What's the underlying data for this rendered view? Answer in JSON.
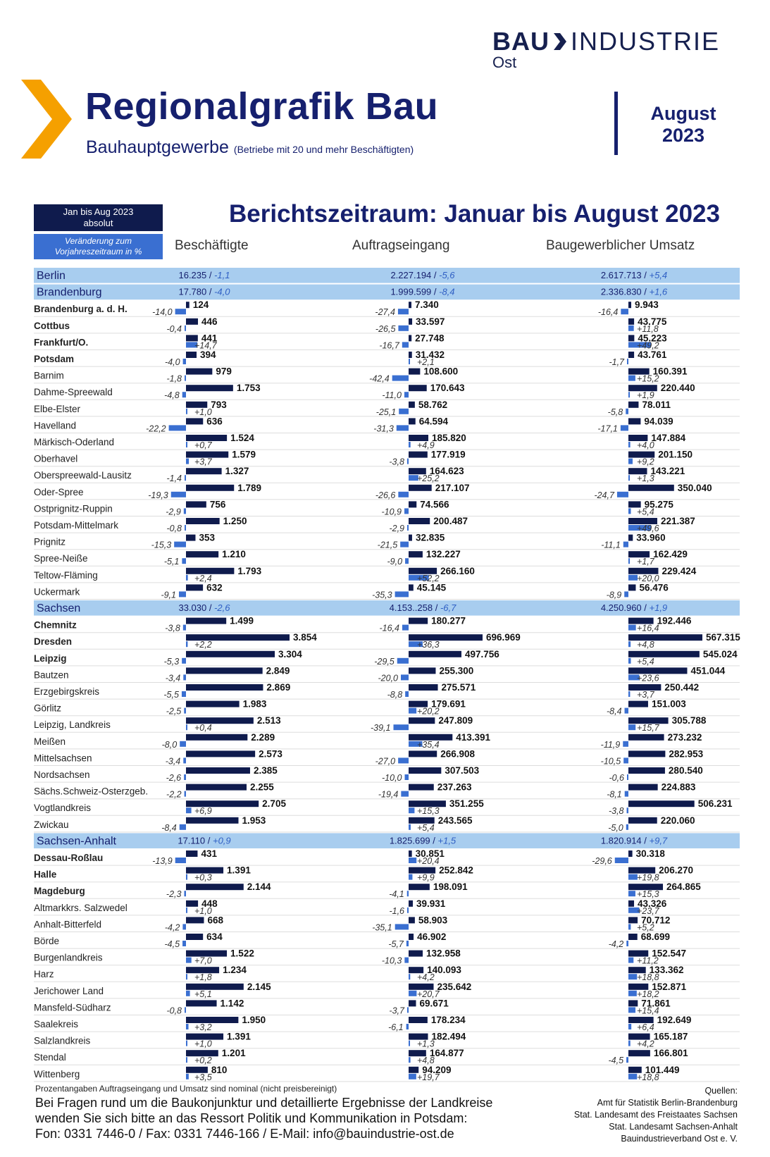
{
  "header": {
    "logo_bold": "BAU",
    "logo_rest": "INDUSTRIE",
    "logo_sub": "Ost",
    "title": "Regionalgrafik Bau",
    "subtitle": "Bauhauptgewerbe",
    "subtitle_note": "(Betriebe mit 20 und mehr Beschäftigten)",
    "month": "August",
    "year": "2023"
  },
  "legend": {
    "absolute_line1": "Jan bis Aug 2023",
    "absolute_line2": "absolut",
    "change_line1": "Veränderung zum",
    "change_line2": "Vorjahreszeitraum in %"
  },
  "period_title": "Berichtszeitraum: Januar bis August 2023",
  "columns": [
    "Beschäftigte",
    "Auftragseingang",
    "Baugewerblicher Umsatz"
  ],
  "colors": {
    "abs_bar": "#0f1b4d",
    "pct_bar": "#3a6fd1",
    "state_band": "#a8cdef",
    "navy": "#16206e"
  },
  "chart_data": {
    "type": "bar",
    "note": "rows in order; s = state row; b = bold (city); cells = [absolute_label, abs_value, pct_label, pct_value] per column",
    "rows": [
      {
        "n": "Berlin",
        "s": 1,
        "c": [
          [
            "16.235",
            "-1,1"
          ],
          [
            "2.227.194",
            "-5,6"
          ],
          [
            "2.617.713",
            "+5,4"
          ]
        ]
      },
      {
        "n": "Brandenburg",
        "s": 1,
        "c": [
          [
            "17.780",
            "-4,0"
          ],
          [
            "1.999.599",
            "-8,4"
          ],
          [
            "2.336.830",
            "+1,6"
          ]
        ]
      },
      {
        "n": "Brandenburg a. d. H.",
        "b": 1,
        "c": [
          [
            "124",
            124,
            "-14,0",
            -14.0
          ],
          [
            "7.340",
            7340,
            "-27,4",
            -27.4
          ],
          [
            "9.943",
            9943,
            "-16,4",
            -16.4
          ]
        ]
      },
      {
        "n": "Cottbus",
        "b": 1,
        "c": [
          [
            "446",
            446,
            "-0,4",
            -0.4
          ],
          [
            "33.597",
            33597,
            "-26,5",
            -26.5
          ],
          [
            "43.775",
            43775,
            "+11,8",
            11.8
          ]
        ]
      },
      {
        "n": "Frankfurt/O.",
        "b": 1,
        "c": [
          [
            "441",
            441,
            "+14,7",
            14.7
          ],
          [
            "27.748",
            27748,
            "-16,7",
            -16.7
          ],
          [
            "45.223",
            45223,
            "+49,2",
            49.2
          ]
        ]
      },
      {
        "n": "Potsdam",
        "b": 1,
        "c": [
          [
            "394",
            394,
            "-4,0",
            -4.0
          ],
          [
            "31.432",
            31432,
            "+2,1",
            2.1
          ],
          [
            "43.761",
            43761,
            "-1,7",
            -1.7
          ]
        ]
      },
      {
        "n": "Barnim",
        "c": [
          [
            "979",
            979,
            "-1,8",
            -1.8
          ],
          [
            "108.600",
            108600,
            "-42,4",
            -42.4
          ],
          [
            "160.391",
            160391,
            "+15,2",
            15.2
          ]
        ]
      },
      {
        "n": "Dahme-Spreewald",
        "c": [
          [
            "1.753",
            1753,
            "-4,8",
            -4.8
          ],
          [
            "170.643",
            170643,
            "-11,0",
            -11.0
          ],
          [
            "220.440",
            220440,
            "+1,9",
            1.9
          ]
        ]
      },
      {
        "n": "Elbe-Elster",
        "c": [
          [
            "793",
            793,
            "+1,0",
            1.0
          ],
          [
            "58.762",
            58762,
            "-25,1",
            -25.1
          ],
          [
            "78.011",
            78011,
            "-5,8",
            -5.8
          ]
        ]
      },
      {
        "n": "Havelland",
        "c": [
          [
            "636",
            636,
            "-22,2",
            -22.2
          ],
          [
            "64.594",
            64594,
            "-31,3",
            -31.3
          ],
          [
            "94.039",
            94039,
            "-17,1",
            -17.1
          ]
        ]
      },
      {
        "n": "Märkisch-Oderland",
        "c": [
          [
            "1.524",
            1524,
            "+0,7",
            0.7
          ],
          [
            "185.820",
            185820,
            "+4,9",
            4.9
          ],
          [
            "147.884",
            147884,
            "+4,0",
            4.0
          ]
        ]
      },
      {
        "n": "Oberhavel",
        "c": [
          [
            "1.579",
            1579,
            "+3,7",
            3.7
          ],
          [
            "177.919",
            177919,
            "-3,8",
            -3.8
          ],
          [
            "201.150",
            201150,
            "+9,2",
            9.2
          ]
        ]
      },
      {
        "n": "Oberspreewald-Lausitz",
        "c": [
          [
            "1.327",
            1327,
            "-1,4",
            -1.4
          ],
          [
            "164.623",
            164623,
            "+25,2",
            25.2
          ],
          [
            "143.221",
            143221,
            "+1,3",
            1.3
          ]
        ]
      },
      {
        "n": "Oder-Spree",
        "c": [
          [
            "1.789",
            1789,
            "-19,3",
            -19.3
          ],
          [
            "217.107",
            217107,
            "-26,6",
            -26.6
          ],
          [
            "350.040",
            350040,
            "-24,7",
            -24.7
          ]
        ]
      },
      {
        "n": "Ostprignitz-Ruppin",
        "c": [
          [
            "756",
            756,
            "-2,9",
            -2.9
          ],
          [
            "74.566",
            74566,
            "-10,9",
            -10.9
          ],
          [
            "95.275",
            95275,
            "+5,4",
            5.4
          ]
        ]
      },
      {
        "n": "Potsdam-Mittelmark",
        "c": [
          [
            "1.250",
            1250,
            "-0,8",
            -0.8
          ],
          [
            "200.487",
            200487,
            "-2,9",
            -2.9
          ],
          [
            "221.387",
            221387,
            "+49,6",
            49.6
          ]
        ]
      },
      {
        "n": "Prignitz",
        "c": [
          [
            "353",
            353,
            "-15,3",
            -15.3
          ],
          [
            "32.835",
            32835,
            "-21,5",
            -21.5
          ],
          [
            "33.960",
            33960,
            "-11,1",
            -11.1
          ]
        ]
      },
      {
        "n": "Spree-Neiße",
        "c": [
          [
            "1.210",
            1210,
            "-5,1",
            -5.1
          ],
          [
            "132.227",
            132227,
            "-9,0",
            -9.0
          ],
          [
            "162.429",
            162429,
            "+1,7",
            1.7
          ]
        ]
      },
      {
        "n": "Teltow-Fläming",
        "c": [
          [
            "1.793",
            1793,
            "+2,4",
            2.4
          ],
          [
            "266.160",
            266160,
            "+52,2",
            52.2
          ],
          [
            "229.424",
            229424,
            "+20,0",
            20.0
          ]
        ]
      },
      {
        "n": "Uckermark",
        "c": [
          [
            "632",
            632,
            "-9,1",
            -9.1
          ],
          [
            "45.145",
            45145,
            "-35,3",
            -35.3
          ],
          [
            "56.476",
            56476,
            "-8,9",
            -8.9
          ]
        ]
      },
      {
        "n": "Sachsen",
        "s": 1,
        "c": [
          [
            "33.030",
            "-2,6"
          ],
          [
            "4.153..258",
            "-6,7"
          ],
          [
            "4.250.960",
            "+1,9"
          ]
        ]
      },
      {
        "n": "Chemnitz",
        "b": 1,
        "c": [
          [
            "1.499",
            1499,
            "-3,8",
            -3.8
          ],
          [
            "180.277",
            180277,
            "-16,4",
            -16.4
          ],
          [
            "192.446",
            192446,
            "+16,4",
            16.4
          ]
        ]
      },
      {
        "n": "Dresden",
        "b": 1,
        "c": [
          [
            "3.854",
            3854,
            "+2,2",
            2.2
          ],
          [
            "696.969",
            696969,
            "+36,3",
            36.3
          ],
          [
            "567.315",
            567315,
            "+4,8",
            4.8
          ]
        ]
      },
      {
        "n": "Leipzig",
        "b": 1,
        "c": [
          [
            "3.304",
            3304,
            "-5,3",
            -5.3
          ],
          [
            "497.756",
            497756,
            "-29,5",
            -29.5
          ],
          [
            "545.024",
            545024,
            "+5,4",
            5.4
          ]
        ]
      },
      {
        "n": "Bautzen",
        "c": [
          [
            "2.849",
            2849,
            "-3,4",
            -3.4
          ],
          [
            "255.300",
            255300,
            "-20,0",
            -20.0
          ],
          [
            "451.044",
            451044,
            "+23,6",
            23.6
          ]
        ]
      },
      {
        "n": "Erzgebirgskreis",
        "c": [
          [
            "2.869",
            2869,
            "-5,5",
            -5.5
          ],
          [
            "275.571",
            275571,
            "-8,8",
            -8.8
          ],
          [
            "250.442",
            250442,
            "+3,7",
            3.7
          ]
        ]
      },
      {
        "n": "Görlitz",
        "c": [
          [
            "1.983",
            1983,
            "-2,5",
            -2.5
          ],
          [
            "179.691",
            179691,
            "+20,2",
            20.2
          ],
          [
            "151.003",
            151003,
            "-8,4",
            -8.4
          ]
        ]
      },
      {
        "n": "Leipzig, Landkreis",
        "c": [
          [
            "2.513",
            2513,
            "+0,4",
            0.4
          ],
          [
            "247.809",
            247809,
            "-39,1",
            -39.1
          ],
          [
            "305.788",
            305788,
            "+15,7",
            15.7
          ]
        ]
      },
      {
        "n": "Meißen",
        "c": [
          [
            "2.289",
            2289,
            "-8,0",
            -8.0
          ],
          [
            "413.391",
            413391,
            "+35,4",
            35.4
          ],
          [
            "273.232",
            273232,
            "-11,9",
            -11.9
          ]
        ]
      },
      {
        "n": "Mittelsachsen",
        "c": [
          [
            "2.573",
            2573,
            "-3,4",
            -3.4
          ],
          [
            "266.908",
            266908,
            "-27,0",
            -27.0
          ],
          [
            "282.953",
            282953,
            "-10,5",
            -10.5
          ]
        ]
      },
      {
        "n": "Nordsachsen",
        "c": [
          [
            "2.385",
            2385,
            "-2,6",
            -2.6
          ],
          [
            "307.503",
            307503,
            "-10,0",
            -10.0
          ],
          [
            "280.540",
            280540,
            "-0,6",
            -0.6
          ]
        ]
      },
      {
        "n": "Sächs.Schweiz-Osterzgeb.",
        "c": [
          [
            "2.255",
            2255,
            "-2,2",
            -2.2
          ],
          [
            "237.263",
            237263,
            "-19,4",
            -19.4
          ],
          [
            "224.883",
            224883,
            "-8,1",
            -8.1
          ]
        ]
      },
      {
        "n": "Vogtlandkreis",
        "c": [
          [
            "2.705",
            2705,
            "+6,9",
            6.9
          ],
          [
            "351.255",
            351255,
            "+15,3",
            15.3
          ],
          [
            "506.231",
            506231,
            "-3,8",
            -3.8
          ]
        ]
      },
      {
        "n": "Zwickau",
        "c": [
          [
            "1.953",
            1953,
            "-8,4",
            -8.4
          ],
          [
            "243.565",
            243565,
            "+5,4",
            5.4
          ],
          [
            "220.060",
            220060,
            "-5,0",
            -5.0
          ]
        ]
      },
      {
        "n": "Sachsen-Anhalt",
        "s": 1,
        "c": [
          [
            "17.110",
            "+0,9"
          ],
          [
            "1.825.699",
            "+1,5"
          ],
          [
            "1.820.914",
            "+9,7"
          ]
        ]
      },
      {
        "n": "Dessau-Roßlau",
        "b": 1,
        "c": [
          [
            "431",
            431,
            "-13,9",
            -13.9
          ],
          [
            "30.851",
            30851,
            "+20,4",
            20.4
          ],
          [
            "30.318",
            30318,
            "-29,6",
            -29.6
          ]
        ]
      },
      {
        "n": "Halle",
        "b": 1,
        "c": [
          [
            "1.391",
            1391,
            "+0,3",
            0.3
          ],
          [
            "252.842",
            252842,
            "+9,9",
            9.9
          ],
          [
            "206.270",
            206270,
            "+19,8",
            19.8
          ]
        ]
      },
      {
        "n": "Magdeburg",
        "b": 1,
        "c": [
          [
            "2.144",
            2144,
            "-2,3",
            -2.3
          ],
          [
            "198.091",
            198091,
            "-4,1",
            -4.1
          ],
          [
            "264.865",
            264865,
            "+15,3",
            15.3
          ]
        ]
      },
      {
        "n": "Altmarkkrs. Salzwedel",
        "c": [
          [
            "448",
            448,
            "+1,0",
            1.0
          ],
          [
            "39.931",
            39931,
            "-1,6",
            -1.6
          ],
          [
            "43.326",
            43326,
            "+23,7",
            23.7
          ]
        ]
      },
      {
        "n": "Anhalt-Bitterfeld",
        "c": [
          [
            "668",
            668,
            "-4,2",
            -4.2
          ],
          [
            "58.903",
            58903,
            "-35,1",
            -35.1
          ],
          [
            "70.712",
            70712,
            "+5,2",
            5.2
          ]
        ]
      },
      {
        "n": "Börde",
        "c": [
          [
            "634",
            634,
            "-4,5",
            -4.5
          ],
          [
            "46.902",
            46902,
            "-5,7",
            -5.7
          ],
          [
            "68.699",
            68699,
            "-4,2",
            -4.2
          ]
        ]
      },
      {
        "n": "Burgenlandkreis",
        "c": [
          [
            "1.522",
            1522,
            "+7,0",
            7.0
          ],
          [
            "132.958",
            132958,
            "-10,3",
            -10.3
          ],
          [
            "152.547",
            152547,
            "+11,2",
            11.2
          ]
        ]
      },
      {
        "n": "Harz",
        "c": [
          [
            "1.234",
            1234,
            "+1,8",
            1.8
          ],
          [
            "140.093",
            140093,
            "+4,2",
            4.2
          ],
          [
            "133.362",
            133362,
            "+18,8",
            18.8
          ]
        ]
      },
      {
        "n": "Jerichower Land",
        "c": [
          [
            "2.145",
            2145,
            "+5,1",
            5.1
          ],
          [
            "235.642",
            235642,
            "+20,7",
            20.7
          ],
          [
            "152.871",
            152871,
            "+18,2",
            18.2
          ]
        ]
      },
      {
        "n": "Mansfeld-Südharz",
        "c": [
          [
            "1.142",
            1142,
            "-0,8",
            -0.8
          ],
          [
            "69.671",
            69671,
            "-3,7",
            -3.7
          ],
          [
            "71.861",
            71861,
            "+15,4",
            15.4
          ]
        ]
      },
      {
        "n": "Saalekreis",
        "c": [
          [
            "1.950",
            1950,
            "+3,2",
            3.2
          ],
          [
            "178.234",
            178234,
            "-6,1",
            -6.1
          ],
          [
            "192.649",
            192649,
            "+6,4",
            6.4
          ]
        ]
      },
      {
        "n": "Salzlandkreis",
        "c": [
          [
            "1.391",
            1391,
            "+1,0",
            1.0
          ],
          [
            "182.494",
            182494,
            "+1,3",
            1.3
          ],
          [
            "165.187",
            165187,
            "+4,2",
            4.2
          ]
        ]
      },
      {
        "n": "Stendal",
        "c": [
          [
            "1.201",
            1201,
            "+0,2",
            0.2
          ],
          [
            "164.877",
            164877,
            "+4,8",
            4.8
          ],
          [
            "166.801",
            166801,
            "-4,5",
            -4.5
          ]
        ]
      },
      {
        "n": "Wittenberg",
        "c": [
          [
            "810",
            810,
            "+3,5",
            3.5
          ],
          [
            "94.209",
            94209,
            "+19,7",
            19.7
          ],
          [
            "101.449",
            101449,
            "+18,8",
            18.8
          ]
        ]
      }
    ]
  },
  "footer": {
    "note": "Prozentangaben Auftragseingang und Umsatz sind nominal (nicht preisbereinigt)",
    "contact_1": "Bei Fragen rund um die Baukonjunktur und detaillierte Ergebnisse der Landkreise",
    "contact_2": "wenden Sie sich bitte an das Ressort Politik und Kommunikation in Potsdam:",
    "contact_3": "Fon: 0331 7446-0 / Fax: 0331 7446-166 / E-Mail: info@bauindustrie-ost.de",
    "sources_title": "Quellen:",
    "source_1": "Amt für Statistik Berlin-Brandenburg",
    "source_2": "Stat. Landesamt des Freistaates Sachsen",
    "source_3": "Stat. Landesamt Sachsen-Anhalt",
    "source_4": "Bauindustrieverband Ost e. V."
  }
}
